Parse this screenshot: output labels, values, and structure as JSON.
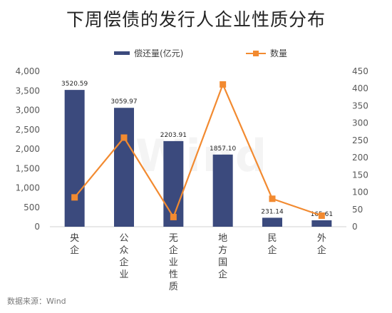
{
  "chart_data": {
    "type": "bar",
    "title": "下周偿债的发行人企业性质分布",
    "categories": [
      "央企",
      "公众企业",
      "无企业性质",
      "地方国企",
      "民企",
      "外企"
    ],
    "series": [
      {
        "name": "偿还量(亿元)",
        "type": "bar",
        "axis": "left",
        "values": [
          3520.59,
          3059.97,
          2203.91,
          1857.1,
          231.14,
          165.61
        ],
        "labels": [
          "3520.59",
          "3059.97",
          "2203.91",
          "1857.10",
          "231.14",
          "165.61"
        ],
        "color": "#3B4A7D"
      },
      {
        "name": "数量",
        "type": "line",
        "axis": "right",
        "values": [
          85,
          258,
          28,
          412,
          81,
          32
        ],
        "color": "#F28A30"
      }
    ],
    "y_left": {
      "min": 0,
      "max": 4000,
      "ticks": [
        "0",
        "500",
        "1,000",
        "1,500",
        "2,000",
        "2,500",
        "3,000",
        "3,500",
        "4,000"
      ]
    },
    "y_right": {
      "min": 0,
      "max": 450,
      "ticks": [
        "0",
        "50",
        "100",
        "150",
        "200",
        "250",
        "300",
        "350",
        "400",
        "450"
      ]
    },
    "grid": false,
    "legend_position": "top"
  },
  "source": "数据来源：Wind",
  "watermark": "Wind"
}
